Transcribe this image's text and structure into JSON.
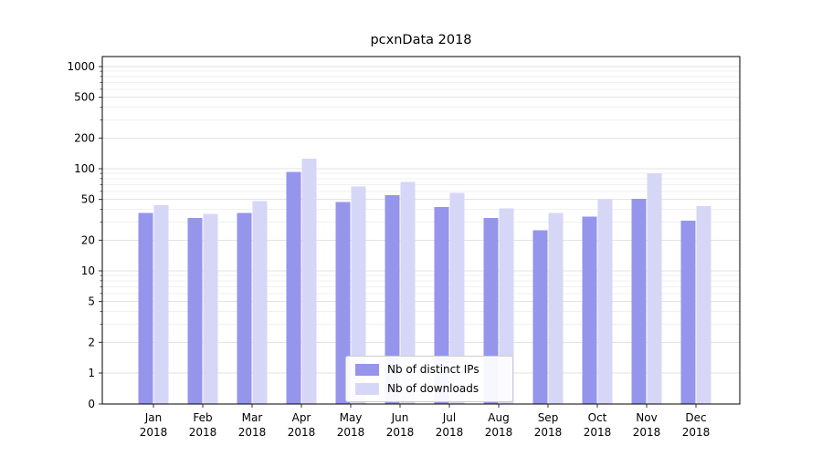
{
  "title": "pcxnData 2018",
  "chart_data": {
    "type": "bar",
    "scale": "symlog",
    "title": "pcxnData 2018",
    "xlabel": "",
    "ylabel": "",
    "categories": [
      {
        "month": "Jan",
        "year": "2018"
      },
      {
        "month": "Feb",
        "year": "2018"
      },
      {
        "month": "Mar",
        "year": "2018"
      },
      {
        "month": "Apr",
        "year": "2018"
      },
      {
        "month": "May",
        "year": "2018"
      },
      {
        "month": "Jun",
        "year": "2018"
      },
      {
        "month": "Jul",
        "year": "2018"
      },
      {
        "month": "Aug",
        "year": "2018"
      },
      {
        "month": "Sep",
        "year": "2018"
      },
      {
        "month": "Oct",
        "year": "2018"
      },
      {
        "month": "Nov",
        "year": "2018"
      },
      {
        "month": "Dec",
        "year": "2018"
      }
    ],
    "series": [
      {
        "name": "Nb of distinct IPs",
        "color": "#9595ec",
        "values": [
          37,
          33,
          37,
          93,
          47,
          55,
          42,
          33,
          25,
          34,
          51,
          31
        ]
      },
      {
        "name": "Nb of downloads",
        "color": "#d6d6f7",
        "values": [
          44,
          36,
          48,
          125,
          67,
          74,
          58,
          41,
          37,
          50,
          90,
          43
        ]
      }
    ],
    "yticks": [
      0,
      1,
      2,
      5,
      10,
      20,
      50,
      100,
      200,
      500,
      1000
    ],
    "minor_yticks": [
      3,
      4,
      6,
      7,
      8,
      9,
      30,
      40,
      60,
      70,
      80,
      90,
      300,
      400,
      600,
      700,
      800,
      900
    ],
    "ylim": [
      0,
      1250
    ],
    "grid": true,
    "legend_position": "lower center"
  }
}
